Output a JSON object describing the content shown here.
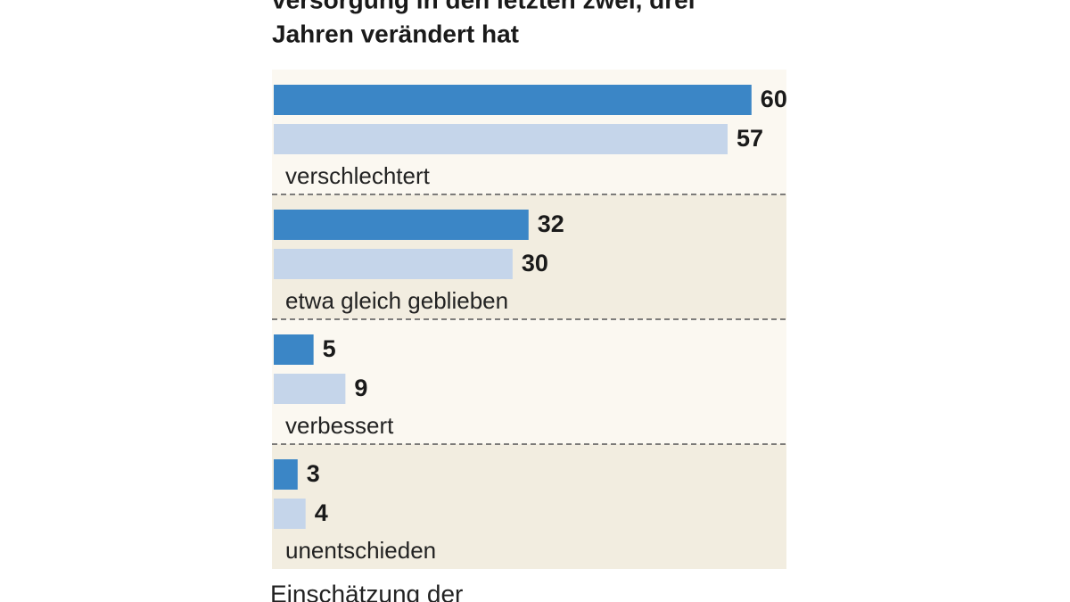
{
  "chart_data": {
    "type": "bar",
    "title_lines": [
      "versorgung in den letzten zwei, drei",
      "Jahren verändert hat"
    ],
    "categories": [
      "verschlechtert",
      "etwa gleich geblieben",
      "verbessert",
      "unentschieden"
    ],
    "series": [
      {
        "color": "#3b86c6",
        "values": [
          60,
          32,
          5,
          3
        ]
      },
      {
        "color": "#c5d5ea",
        "values": [
          57,
          30,
          9,
          4
        ]
      }
    ],
    "footnote": "Einschätzung der"
  }
}
